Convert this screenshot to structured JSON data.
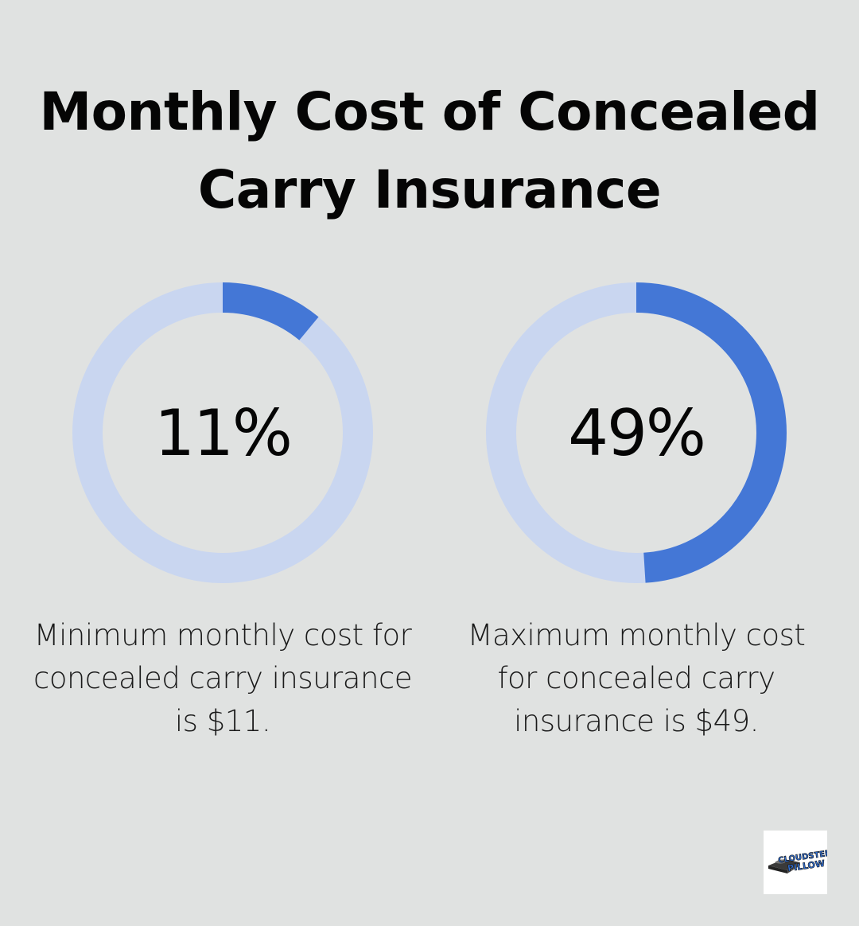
{
  "title": {
    "line1": "Monthly Cost of Concealed",
    "line2": "Carry Insurance"
  },
  "colors": {
    "background": "#e0e2e1",
    "track": "#c9d6f0",
    "accent": "#4477d6",
    "text": "#050505"
  },
  "chart_data": [
    {
      "type": "pie",
      "subtype": "donut",
      "value": 11,
      "max": 100,
      "label": "11%",
      "caption": "Minimum monthly cost for concealed carry insurance is $11."
    },
    {
      "type": "pie",
      "subtype": "donut",
      "value": 49,
      "max": 100,
      "label": "49%",
      "caption": "Maximum monthly cost for concealed carry insurance is $49."
    }
  ],
  "captions": [
    {
      "line1": "Minimum monthly cost for",
      "line2": "concealed carry insurance",
      "line3": "is $11."
    },
    {
      "line1": "Maximum monthly cost",
      "line2": "for concealed carry",
      "line3": "insurance is $49."
    }
  ],
  "logo": {
    "icon": "pillow-brand-logo",
    "text": "CLOUDSTER PILLOW"
  }
}
